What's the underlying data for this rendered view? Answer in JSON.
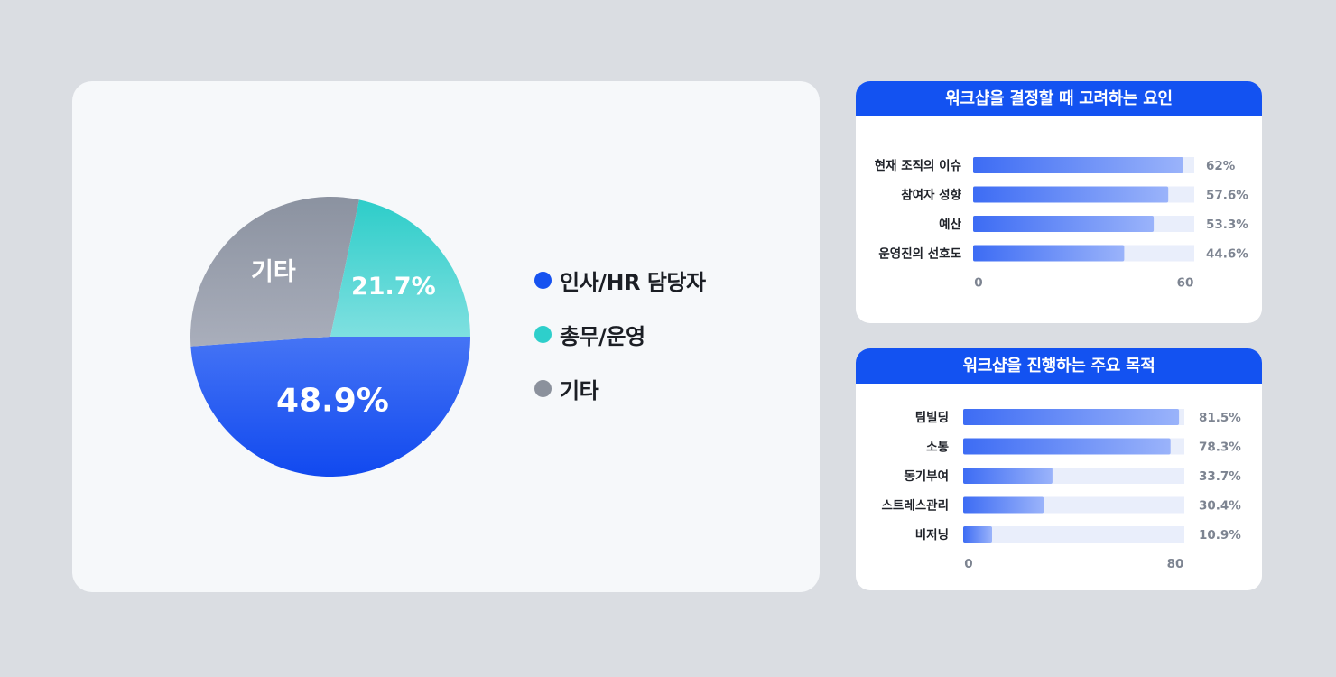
{
  "pie_card": {
    "legend": [
      {
        "label": "인사/HR 담당자",
        "color": "#1652f0"
      },
      {
        "label": "총무/운영",
        "color": "#2ecfcb"
      },
      {
        "label": "기타",
        "color": "#8b919c"
      }
    ]
  },
  "chart_data": [
    {
      "type": "pie",
      "slices": [
        {
          "label": "인사/HR 담당자",
          "value": 48.9,
          "display": "48.9%",
          "color_top": "#4574f5",
          "color_bottom": "#1149ef"
        },
        {
          "label": "총무/운영",
          "value": 21.7,
          "display": "21.7%",
          "color_top": "#2dcdc9",
          "color_bottom": "#7fe0e0"
        },
        {
          "label": "기타",
          "value": 29.4,
          "display": "기타",
          "color_top": "#8b92a0",
          "color_bottom": "#a9aebb"
        }
      ]
    },
    {
      "type": "bar",
      "title": "워크샵을 결정할 때 고려하는 요인",
      "categories": [
        "현재 조직의 이슈",
        "참여자 성향",
        "예산",
        "운영진의 선호도"
      ],
      "values": [
        62,
        57.6,
        53.3,
        44.6
      ],
      "value_labels": [
        "62%",
        "57.6%",
        "53.3%",
        "44.6%"
      ],
      "xlim": [
        0,
        60
      ],
      "tick_labels": [
        "0",
        "60"
      ]
    },
    {
      "type": "bar",
      "title": "워크샵을 진행하는 주요 목적",
      "categories": [
        "팀빌딩",
        "소통",
        "동기부여",
        "스트레스관리",
        "비저닝"
      ],
      "values": [
        81.5,
        78.3,
        33.7,
        30.4,
        10.9
      ],
      "value_labels": [
        "81.5%",
        "78.3%",
        "33.7%",
        "30.4%",
        "10.9%"
      ],
      "xlim": [
        0,
        80
      ],
      "tick_labels": [
        "0",
        "80"
      ]
    }
  ]
}
